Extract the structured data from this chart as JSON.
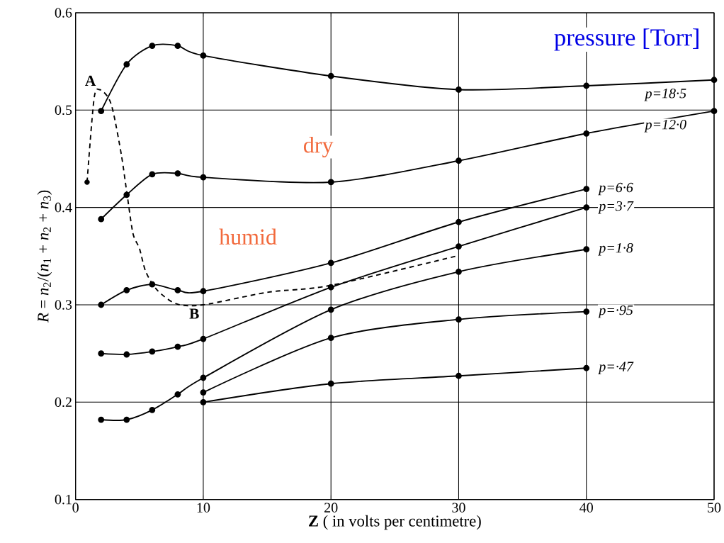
{
  "chart_data": {
    "type": "line",
    "xlabel": "**Z** ( in volts per centimetre)",
    "ylabel": "*R* = *n*$_{2}$/(*n*$_{1}$ + *n*$_{2}$ + *n*$_{3}$)",
    "xlim": [
      0,
      50
    ],
    "ylim": [
      0.1,
      0.6
    ],
    "xticks": [
      0,
      10,
      20,
      30,
      40,
      50
    ],
    "yticks": [
      0.1,
      0.2,
      0.3,
      0.4,
      0.5,
      0.6
    ],
    "grid": true,
    "marker": "circle",
    "line_style": "solid",
    "series": [
      {
        "name": "p=18·5",
        "color": "#000000",
        "x": [
          2,
          4,
          6,
          8,
          10,
          20,
          30,
          40,
          50
        ],
        "values": [
          0.499,
          0.547,
          0.566,
          0.566,
          0.556,
          0.535,
          0.521,
          0.525,
          0.531
        ]
      },
      {
        "name": "p=12·0",
        "color": "#000000",
        "x": [
          2,
          4,
          6,
          8,
          10,
          20,
          30,
          40,
          50
        ],
        "values": [
          0.388,
          0.413,
          0.434,
          0.435,
          0.431,
          0.426,
          0.448,
          0.476,
          0.499
        ]
      },
      {
        "name": "p=6·6",
        "color": "#000000",
        "x": [
          2,
          4,
          6,
          8,
          10,
          20,
          30,
          40
        ],
        "values": [
          0.3,
          0.315,
          0.321,
          0.315,
          0.314,
          0.343,
          0.385,
          0.419
        ]
      },
      {
        "name": "p=3·7",
        "color": "#000000",
        "x": [
          2,
          4,
          6,
          8,
          10,
          20,
          30,
          40
        ],
        "values": [
          0.25,
          0.249,
          0.252,
          0.257,
          0.265,
          0.318,
          0.36,
          0.4
        ]
      },
      {
        "name": "p=1·8",
        "color": "#000000",
        "x": [
          2,
          4,
          6,
          8,
          10,
          20,
          30,
          40
        ],
        "values": [
          0.182,
          0.182,
          0.192,
          0.208,
          0.225,
          0.295,
          0.334,
          0.357
        ]
      },
      {
        "name": "p=·95",
        "color": "#000000",
        "x": [
          10,
          20,
          30,
          40
        ],
        "values": [
          0.21,
          0.266,
          0.285,
          0.293
        ]
      },
      {
        "name": "p=·47",
        "color": "#000000",
        "x": [
          10,
          20,
          30,
          40
        ],
        "values": [
          0.2,
          0.219,
          0.227,
          0.235
        ]
      },
      {
        "color": "#000000",
        "line_style": "dashed",
        "marker": "none",
        "x": [
          0.9,
          1.45,
          1.9,
          2.6,
          3.0,
          3.6,
          4.05,
          4.5,
          5.0,
          5.5,
          6.4,
          7.9,
          10,
          15.1,
          20,
          29.8
        ],
        "values": [
          0.426,
          0.512,
          0.521,
          0.512,
          0.495,
          0.453,
          0.412,
          0.373,
          0.358,
          0.334,
          0.315,
          0.301,
          0.3,
          0.313,
          0.32,
          0.35
        ]
      },
      {
        "type": "scatter",
        "color": "#000000",
        "x": [
          0.9
        ],
        "values": [
          0.426
        ]
      }
    ],
    "annotations": [
      {
        "text": "A",
        "x": 1.9,
        "y": 0.521
      },
      {
        "text": "B",
        "x": 10,
        "y": 0.3
      },
      "dry",
      "humid",
      "pressure [Torr]"
    ]
  }
}
